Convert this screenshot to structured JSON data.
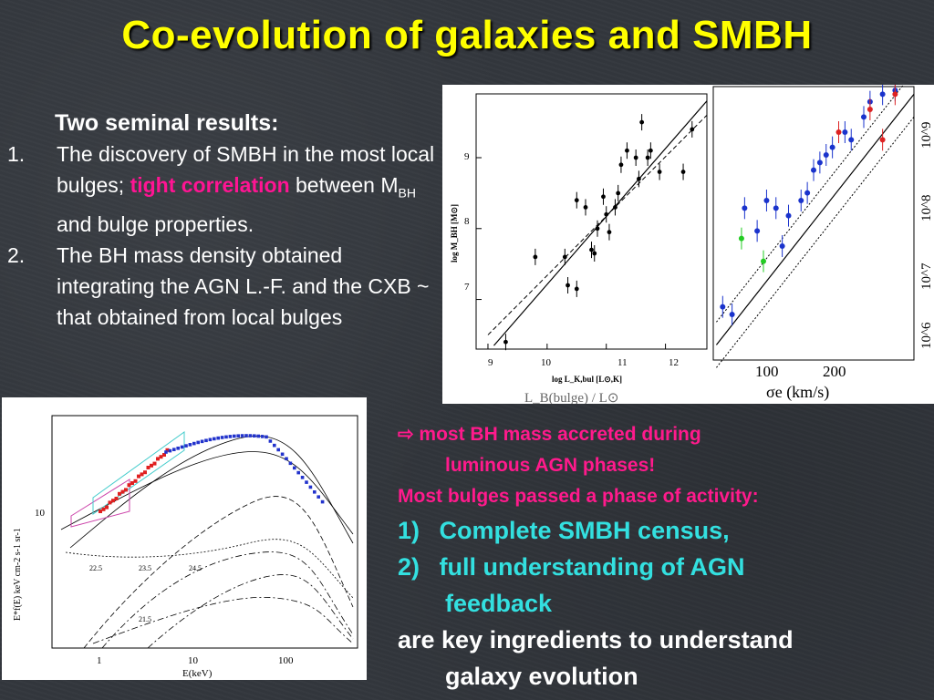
{
  "slide": {
    "title": "Co-evolution of galaxies and SMBH",
    "results_heading": "Two seminal results:",
    "item1": {
      "number": "1.",
      "text_a": "The discovery of SMBH in the most local bulges;",
      "highlight": "tight correlation",
      "text_b": "between M",
      "subscript": "BH",
      "text_c": "and bulge properties."
    },
    "item2": {
      "number": "2.",
      "text": "The BH mass density obtained integrating the AGN L.-F. and the CXB ~ that obtained from local bulges"
    },
    "conclusion": {
      "arrow_line_a": "⇨ most BH mass accreted during",
      "arrow_line_b": "luminous AGN phases!",
      "pink_line": "Most bulges passed a phase of activity:",
      "point1_num": "1)",
      "point1": "Complete SMBH census,",
      "point2_num": "2)",
      "point2_a": "full understanding of AGN",
      "point2_b": "feedback",
      "final_a": "are key ingredients to understand",
      "final_b": "galaxy evolution"
    }
  },
  "colors": {
    "title": "#ffff00",
    "highlight": "#ff1493",
    "cyan": "#33e0e0",
    "background": "#33373d"
  },
  "chart_data": [
    {
      "type": "scatter",
      "xlabel": "log L_K,bul [L⊙,K]",
      "ylabel": "log M_BH [M⊙]",
      "x_ticks": [
        "9",
        "10",
        "11",
        "12"
      ],
      "y_ticks": [
        "7",
        "8",
        "9"
      ],
      "xlim": [
        8.8,
        12.7
      ],
      "ylim": [
        6.3,
        9.9
      ],
      "bottom_partial_label": "L_B(bulge) / L⊙",
      "points": [
        {
          "x": 9.3,
          "y": 6.4
        },
        {
          "x": 9.8,
          "y": 7.6
        },
        {
          "x": 10.3,
          "y": 7.6
        },
        {
          "x": 10.35,
          "y": 7.2
        },
        {
          "x": 10.5,
          "y": 7.15
        },
        {
          "x": 10.5,
          "y": 8.4
        },
        {
          "x": 10.65,
          "y": 8.3
        },
        {
          "x": 10.75,
          "y": 7.7
        },
        {
          "x": 10.8,
          "y": 7.65
        },
        {
          "x": 10.85,
          "y": 8.0
        },
        {
          "x": 10.95,
          "y": 8.45
        },
        {
          "x": 11.0,
          "y": 8.2
        },
        {
          "x": 11.05,
          "y": 7.95
        },
        {
          "x": 11.15,
          "y": 8.3
        },
        {
          "x": 11.2,
          "y": 8.5
        },
        {
          "x": 11.25,
          "y": 8.9
        },
        {
          "x": 11.35,
          "y": 9.1
        },
        {
          "x": 11.5,
          "y": 9.0
        },
        {
          "x": 11.55,
          "y": 8.7
        },
        {
          "x": 11.6,
          "y": 9.5
        },
        {
          "x": 11.7,
          "y": 9.0
        },
        {
          "x": 11.75,
          "y": 9.1
        },
        {
          "x": 11.9,
          "y": 8.8
        },
        {
          "x": 12.3,
          "y": 8.8
        },
        {
          "x": 12.45,
          "y": 9.4
        }
      ]
    },
    {
      "type": "scatter",
      "xlabel": "σe (km/s)",
      "ylabel": "",
      "x_ticks": [
        "100",
        "200"
      ],
      "y_ticks": [
        "10^6",
        "10^7",
        "10^8",
        "10^9"
      ],
      "xlim": [
        50,
        370
      ],
      "ylim_log10": [
        5.8,
        9.4
      ],
      "series": [
        {
          "color": "#1a33cc",
          "points": [
            [
              65,
              6.5
            ],
            [
              80,
              6.4
            ],
            [
              100,
              7.8
            ],
            [
              120,
              7.5
            ],
            [
              135,
              7.9
            ],
            [
              150,
              7.8
            ],
            [
              160,
              7.3
            ],
            [
              170,
              7.7
            ],
            [
              190,
              7.9
            ],
            [
              200,
              8.0
            ],
            [
              210,
              8.3
            ],
            [
              220,
              8.4
            ],
            [
              230,
              8.5
            ],
            [
              240,
              8.6
            ],
            [
              260,
              8.8
            ],
            [
              270,
              8.7
            ],
            [
              290,
              9.0
            ],
            [
              300,
              9.2
            ],
            [
              320,
              9.3
            ],
            [
              340,
              9.35
            ]
          ]
        },
        {
          "color": "#22cc22",
          "points": [
            [
              95,
              7.4
            ],
            [
              130,
              7.1
            ]
          ]
        },
        {
          "color": "#dd2222",
          "points": [
            [
              250,
              8.8
            ],
            [
              300,
              9.1
            ],
            [
              320,
              8.7
            ],
            [
              340,
              9.3
            ]
          ]
        }
      ]
    },
    {
      "type": "line",
      "xlabel": "E(keV)",
      "ylabel": "E*f(E) keV cm-2 s-1 sr-1",
      "x_ticks": [
        "1",
        "10",
        "100"
      ],
      "y_ticks": [
        "10"
      ],
      "component_labels": [
        "22.5",
        "23.5",
        "24.5",
        "21.5"
      ]
    }
  ]
}
